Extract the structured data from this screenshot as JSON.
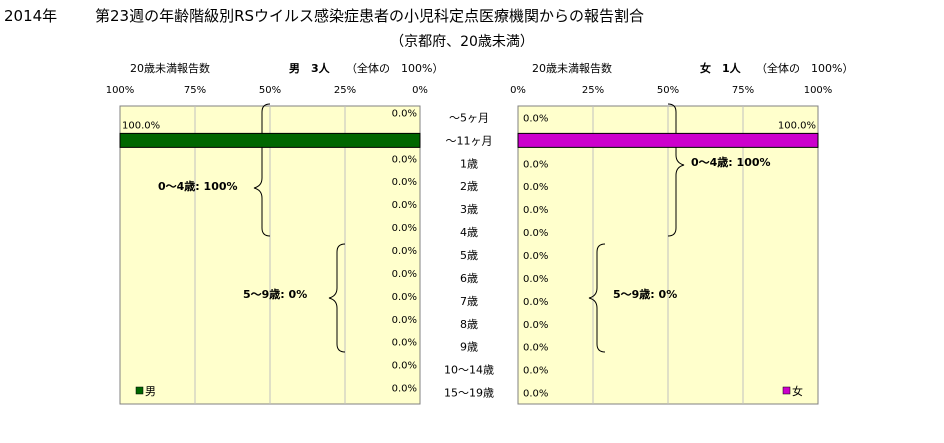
{
  "header": {
    "year_label": "2014年",
    "title": "第23週の年齢階級別RSウイルス感染症患者の小児科定点医療機関からの報告割合",
    "subtitle": "（京都府、20歳未満）"
  },
  "left_panel": {
    "report_label": "20歳未満報告数",
    "sex_count_label": "男　3人",
    "total_label": "（全体の　100%）",
    "legend_label": "男",
    "series_color": "#006600",
    "group_labels": [
      "0～4歳: 100%",
      "5～9歳: 0%"
    ]
  },
  "right_panel": {
    "report_label": "20歳未満報告数",
    "sex_count_label": "女　1人",
    "total_label": "（全体の　100%）",
    "legend_label": "女",
    "series_color": "#cc00cc",
    "group_labels": [
      "0～4歳: 100%",
      "5～9歳: 0%"
    ]
  },
  "chart_data": {
    "type": "bar",
    "categories": [
      "～5ヶ月",
      "～11ヶ月",
      "1歳",
      "2歳",
      "3歳",
      "4歳",
      "5歳",
      "6歳",
      "7歳",
      "8歳",
      "9歳",
      "10～14歳",
      "15～19歳"
    ],
    "xlim": [
      0,
      100
    ],
    "x_ticks_left": [
      "100%",
      "75%",
      "50%",
      "25%",
      "0%"
    ],
    "x_ticks_right": [
      "0%",
      "25%",
      "50%",
      "75%",
      "100%"
    ],
    "series": [
      {
        "name": "男",
        "color": "#006600",
        "values": [
          0,
          100,
          0,
          0,
          0,
          0,
          0,
          0,
          0,
          0,
          0,
          0,
          0
        ],
        "labels": [
          "0.0%",
          "100.0%",
          "0.0%",
          "0.0%",
          "0.0%",
          "0.0%",
          "0.0%",
          "0.0%",
          "0.0%",
          "0.0%",
          "0.0%",
          "0.0%",
          "0.0%"
        ]
      },
      {
        "name": "女",
        "color": "#cc00cc",
        "values": [
          0,
          100,
          0,
          0,
          0,
          0,
          0,
          0,
          0,
          0,
          0,
          0,
          0
        ],
        "labels": [
          "0.0%",
          "100.0%",
          "0.0%",
          "0.0%",
          "0.0%",
          "0.0%",
          "0.0%",
          "0.0%",
          "0.0%",
          "0.0%",
          "0.0%",
          "0.0%",
          "0.0%"
        ]
      }
    ],
    "grid": true
  }
}
